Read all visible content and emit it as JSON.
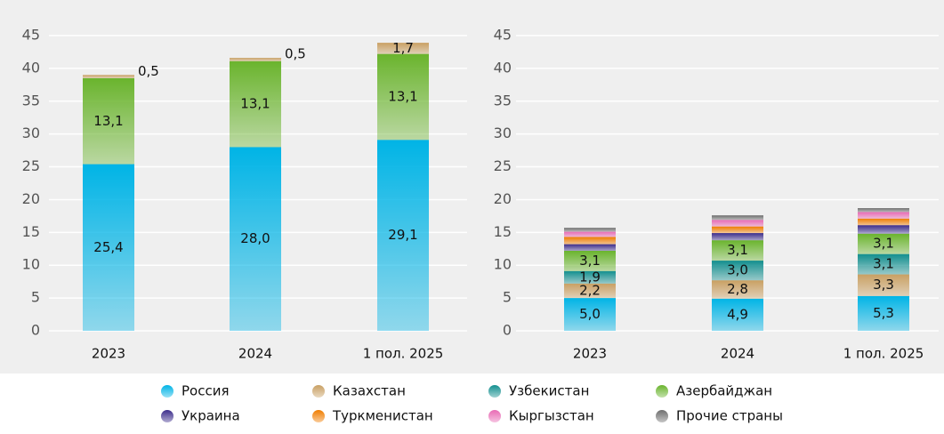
{
  "chart_data": [
    {
      "type": "stacked-bar",
      "categories": [
        "2023",
        "2024",
        "1 пол. 2025"
      ],
      "ylim": [
        0,
        45
      ],
      "yticks": [
        0,
        5,
        10,
        15,
        20,
        25,
        30,
        35,
        40,
        45
      ],
      "grid": true,
      "series": [
        {
          "color": "#00b4e6",
          "values": [
            25.4,
            28.0,
            29.1
          ],
          "value_labels": [
            "25,4",
            "28,0",
            "29,1"
          ]
        },
        {
          "color": "#6ab42d",
          "values": [
            13.1,
            13.1,
            13.1
          ],
          "value_labels": [
            "13,1",
            "13,1",
            "13,1"
          ]
        },
        {
          "color": "#c9a063",
          "values": [
            0.5,
            0.5,
            1.7
          ],
          "value_labels": [
            "0,5",
            "0,5",
            "1,7"
          ]
        }
      ]
    },
    {
      "type": "stacked-bar",
      "categories": [
        "2023",
        "2024",
        "1 пол. 2025"
      ],
      "ylim": [
        0,
        45
      ],
      "yticks": [
        0,
        5,
        10,
        15,
        20,
        25,
        30,
        35,
        40,
        45
      ],
      "grid": true,
      "series": [
        {
          "name": "Россия",
          "color": "#00b4e6",
          "values": [
            5.0,
            4.9,
            5.3
          ],
          "value_labels": [
            "5,0",
            "4,9",
            "5,3"
          ]
        },
        {
          "name": "Казахстан",
          "color": "#c9a063",
          "values": [
            2.2,
            2.8,
            3.3
          ],
          "value_labels": [
            "2,2",
            "2,8",
            "3,3"
          ]
        },
        {
          "name": "Узбекистан",
          "color": "#138f8f",
          "values": [
            1.9,
            3.0,
            3.1
          ],
          "value_labels": [
            "1,9",
            "3,0",
            "3,1"
          ]
        },
        {
          "name": "Азербайджан",
          "color": "#6ab42d",
          "values": [
            3.1,
            3.1,
            3.1
          ],
          "value_labels": [
            "3,1",
            "3,1",
            "3,1"
          ]
        },
        {
          "name": "Украина",
          "color": "#3c2d8c",
          "values": [
            1.0,
            1.1,
            1.3
          ]
        },
        {
          "name": "Туркменистан",
          "color": "#f07d00",
          "values": [
            1.1,
            1.0,
            1.0
          ]
        },
        {
          "name": "Кыргызстан",
          "color": "#e86ab4",
          "values": [
            0.8,
            1.0,
            1.0
          ]
        },
        {
          "name": "Прочие страны",
          "color": "#6e6e6e",
          "values": [
            0.6,
            0.7,
            0.6
          ]
        }
      ]
    }
  ]
}
